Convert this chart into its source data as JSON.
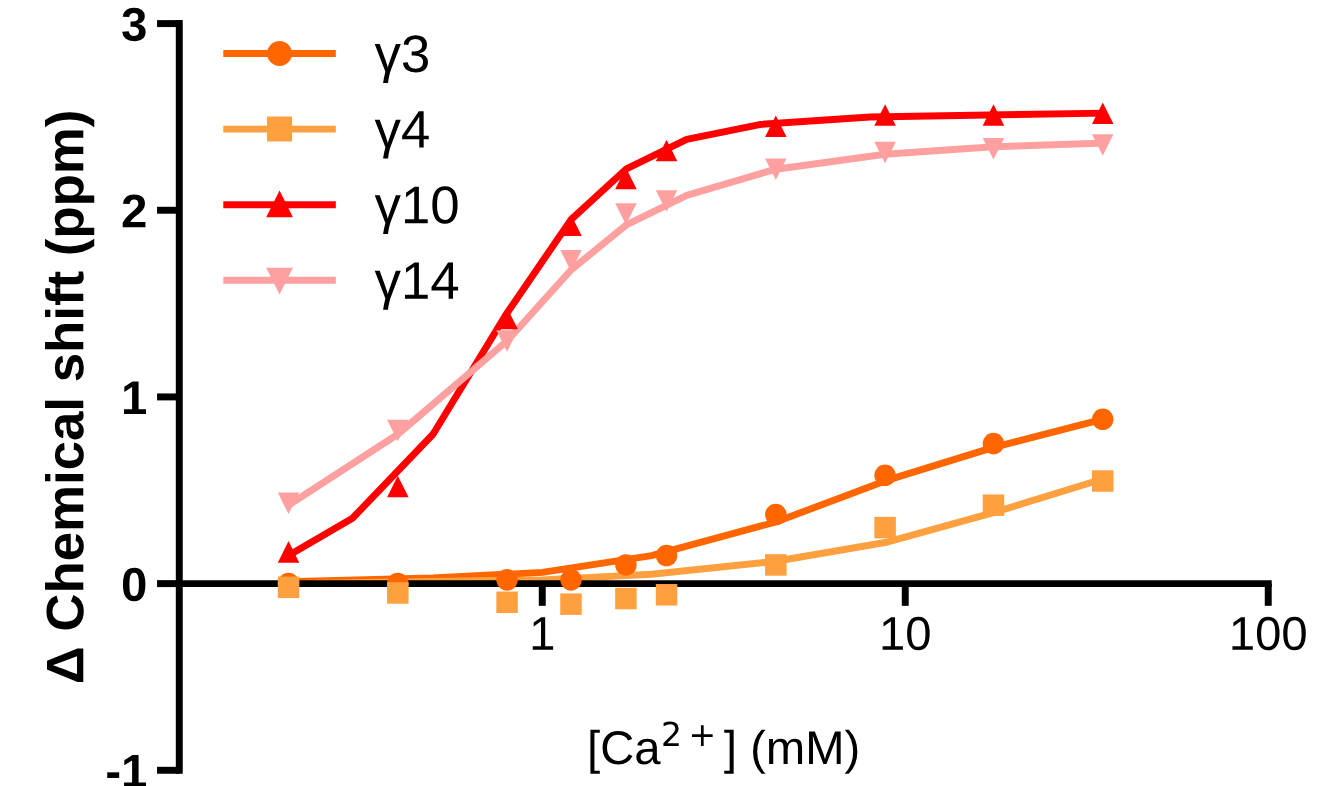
{
  "chart_data": {
    "type": "scatter",
    "xlabel": "[Ca$^{2+}$] (mM)",
    "ylabel": "Δ Chemical shift (ppm)",
    "log": "x",
    "xlim": [
      0.1,
      100
    ],
    "xticks": [
      1,
      10,
      100
    ],
    "ylim": [
      -1,
      3
    ],
    "yticks": [
      -1,
      0,
      1,
      2,
      3
    ],
    "grid": false,
    "legend": "top left",
    "series": [
      {
        "name": "γ3",
        "color": "#ff6600",
        "marker": "circle",
        "x": [
          0.2,
          0.4,
          0.8,
          1.2,
          1.7,
          2.2,
          4.4,
          8.8,
          17.5,
          35
        ],
        "values": [
          0,
          0,
          0.02,
          0.02,
          0.1,
          0.15,
          0.37,
          0.58,
          0.75,
          0.88
        ]
      },
      {
        "name": "γ4",
        "color": "#ffa040",
        "marker": "square",
        "x": [
          0.2,
          0.4,
          0.8,
          1.2,
          1.7,
          2.2,
          4.4,
          8.8,
          17.5,
          35
        ],
        "values": [
          -0.02,
          -0.05,
          -0.1,
          -0.11,
          -0.08,
          -0.06,
          0.1,
          0.3,
          0.42,
          0.55
        ]
      },
      {
        "name": "γ10",
        "color": "#ff0000",
        "marker": "triangle",
        "x": [
          0.2,
          0.4,
          0.8,
          1.2,
          1.7,
          2.2,
          4.4,
          8.8,
          17.5,
          35
        ],
        "values": [
          0.17,
          0.52,
          1.42,
          1.92,
          2.17,
          2.32,
          2.45,
          2.51,
          2.51,
          2.52
        ]
      },
      {
        "name": "γ14",
        "color": "#ffa0a0",
        "marker": "triangle_down",
        "x": [
          0.2,
          0.4,
          0.8,
          1.2,
          1.7,
          2.2,
          4.4,
          8.8,
          17.5,
          35
        ],
        "values": [
          0.43,
          0.82,
          1.3,
          1.73,
          1.98,
          2.05,
          2.22,
          2.31,
          2.33,
          2.35
        ]
      },
      {
        "type": "line",
        "color": "#ff6600",
        "x": [
          0.2,
          0.5,
          1,
          2,
          4.4,
          8.8,
          17.5,
          35
        ],
        "values": [
          0.01,
          0.03,
          0.06,
          0.15,
          0.33,
          0.55,
          0.73,
          0.88
        ]
      },
      {
        "type": "line",
        "color": "#ffa040",
        "x": [
          0.2,
          1,
          2,
          4.4,
          8.8,
          17.5,
          35
        ],
        "values": [
          0,
          0.02,
          0.05,
          0.12,
          0.22,
          0.38,
          0.56
        ]
      },
      {
        "type": "line",
        "color": "#ff0000",
        "x": [
          0.2,
          0.3,
          0.5,
          0.8,
          1.2,
          1.7,
          2.5,
          4,
          8,
          35
        ],
        "values": [
          0.15,
          0.35,
          0.8,
          1.45,
          1.95,
          2.22,
          2.38,
          2.46,
          2.5,
          2.52
        ]
      },
      {
        "type": "line",
        "color": "#ffa0a0",
        "x": [
          0.2,
          0.4,
          0.8,
          1.2,
          1.7,
          2.5,
          4.4,
          8.8,
          17.5,
          35
        ],
        "values": [
          0.42,
          0.8,
          1.3,
          1.68,
          1.92,
          2.08,
          2.22,
          2.3,
          2.34,
          2.36
        ]
      }
    ]
  }
}
